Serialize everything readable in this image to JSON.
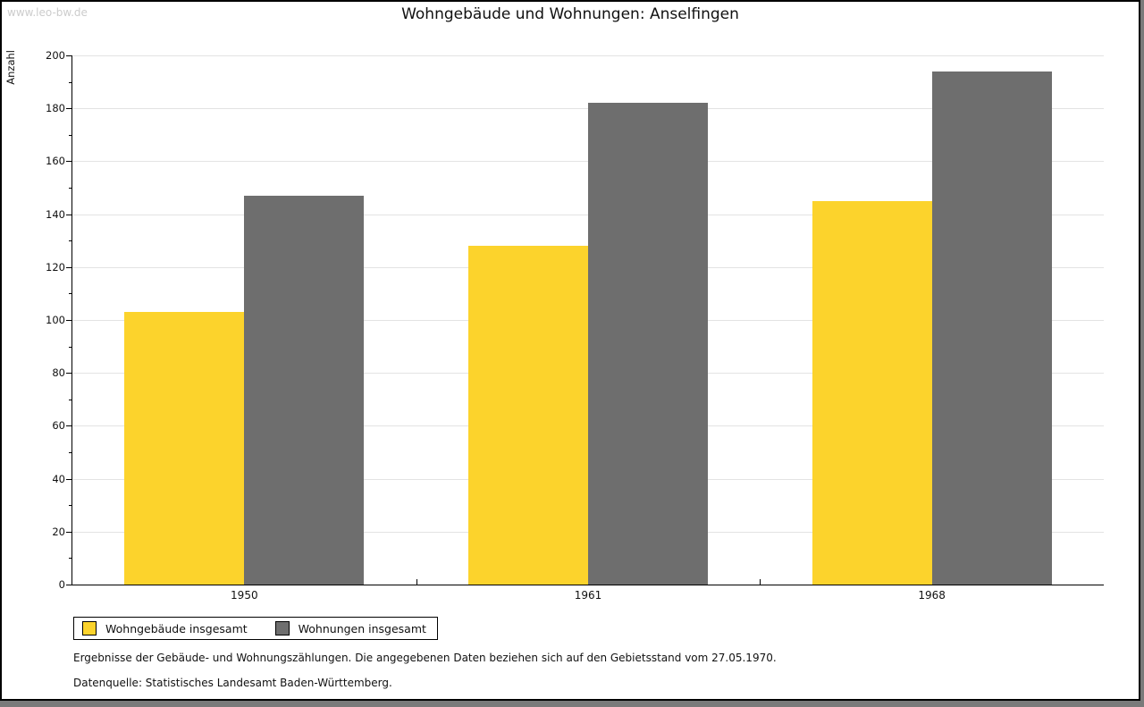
{
  "watermark": "www.leo-bw.de",
  "title": "Wohngebäude und Wohnungen: Anselfingen",
  "chart_data": {
    "type": "bar",
    "title": "Wohngebäude und Wohnungen: Anselfingen",
    "ylabel": "Anzahl",
    "xlabel": "",
    "categories": [
      "1950",
      "1961",
      "1968"
    ],
    "series": [
      {
        "name": "Wohngebäude insgesamt",
        "color": "#fcd32c",
        "values": [
          103,
          128,
          145
        ]
      },
      {
        "name": "Wohnungen insgesamt",
        "color": "#6e6e6e",
        "values": [
          147,
          182,
          194
        ]
      }
    ],
    "ylim": [
      0,
      200
    ],
    "ytick_step": 20,
    "minor_tick_step": 10,
    "grid": "horizontal-major",
    "gridline_color": "#e3e3e3",
    "legend_position": "bottom-left"
  },
  "footer": {
    "line1": "Ergebnisse der Gebäude- und Wohnungszählungen. Die angegebenen Daten beziehen sich auf den Gebietsstand vom 27.05.1970.",
    "line2": "Datenquelle: Statistisches Landesamt Baden-Württemberg."
  }
}
